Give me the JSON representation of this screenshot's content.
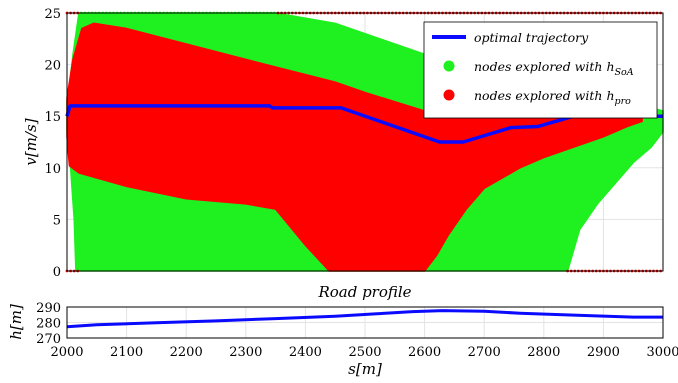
{
  "chart_data": [
    {
      "type": "area",
      "title": "",
      "xlabel": "",
      "ylabel": "v[m/s]",
      "xlim": [
        2000,
        3000
      ],
      "ylim": [
        0,
        25
      ],
      "yticks": [
        0,
        5,
        10,
        15,
        20,
        25
      ],
      "grid": true,
      "legend_position": "top-right",
      "colors": {
        "h_soa": "#1ff01f",
        "h_pro": "#ff0000",
        "trajectory": "#0a0aff"
      },
      "legend": [
        {
          "key": "trajectory",
          "label": "optimal trajectory",
          "kind": "line"
        },
        {
          "key": "h_soa",
          "label": "nodes explored with ",
          "sub": "SoA",
          "kind": "dot"
        },
        {
          "key": "h_pro",
          "label": "nodes explored with ",
          "sub": "pro",
          "kind": "dot"
        }
      ],
      "series": [
        {
          "key": "h_soa",
          "upper": [
            [
              2000,
              16.5
            ],
            [
              2003,
              17.5
            ],
            [
              2010,
              21
            ],
            [
              2020,
              25
            ],
            [
              2350,
              25
            ],
            [
              2450,
              24
            ],
            [
              2550,
              22
            ],
            [
              2650,
              20
            ],
            [
              2750,
              18
            ],
            [
              2850,
              17
            ],
            [
              2950,
              16.3
            ],
            [
              3000,
              15.5
            ]
          ],
          "lower": [
            [
              2000,
              13.5
            ],
            [
              2003,
              12
            ],
            [
              2006,
              10
            ],
            [
              2012,
              5
            ],
            [
              2015,
              0
            ],
            [
              2840,
              0
            ],
            [
              2860,
              4
            ],
            [
              2890,
              6.5
            ],
            [
              2920,
              8.5
            ],
            [
              2950,
              10.5
            ],
            [
              2980,
              12
            ],
            [
              3000,
              13.5
            ]
          ]
        },
        {
          "key": "h_pro",
          "upper": [
            [
              2000,
              16.8
            ],
            [
              2010,
              20.5
            ],
            [
              2025,
              23.5
            ],
            [
              2045,
              24
            ],
            [
              2100,
              23.5
            ],
            [
              2300,
              20.5
            ],
            [
              2450,
              18.3
            ],
            [
              2500,
              17.3
            ],
            [
              2600,
              15.5
            ],
            [
              2700,
              15.9
            ],
            [
              2800,
              15.9
            ],
            [
              2900,
              15.9
            ],
            [
              2950,
              15.9
            ],
            [
              2965,
              15.5
            ]
          ],
          "lower": [
            [
              2965,
              14.5
            ],
            [
              2940,
              14
            ],
            [
              2900,
              13
            ],
            [
              2850,
              12
            ],
            [
              2800,
              11
            ],
            [
              2760,
              10
            ],
            [
              2730,
              9
            ],
            [
              2700,
              8
            ],
            [
              2670,
              6
            ],
            [
              2640,
              3.5
            ],
            [
              2620,
              1.5
            ],
            [
              2600,
              0
            ],
            [
              2500,
              0
            ],
            [
              2440,
              0
            ],
            [
              2400,
              2.5
            ],
            [
              2350,
              6
            ],
            [
              2300,
              6.5
            ],
            [
              2200,
              7
            ],
            [
              2100,
              8.2
            ],
            [
              2020,
              9.5
            ],
            [
              2004,
              10.2
            ],
            [
              2000,
              13
            ]
          ]
        }
      ],
      "trajectory": {
        "x": [
          2000,
          2005,
          2340,
          2345,
          2460,
          2625,
          2665,
          2745,
          2790,
          2850,
          3000
        ],
        "y": [
          15,
          16,
          16,
          15.8,
          15.8,
          12.5,
          12.5,
          13.9,
          14,
          15,
          15
        ]
      }
    },
    {
      "type": "line",
      "title": "Road profile",
      "xlabel": "s[m]",
      "ylabel": "h[m]",
      "xlim": [
        2000,
        3000
      ],
      "ylim": [
        270,
        290
      ],
      "yticks": [
        270,
        280,
        290
      ],
      "xticks": [
        2000,
        2100,
        2200,
        2300,
        2400,
        2500,
        2600,
        2700,
        2800,
        2900,
        3000
      ],
      "grid": true,
      "series": [
        {
          "name": "",
          "color": "#0a0aff",
          "x": [
            2000,
            2050,
            2150,
            2250,
            2350,
            2450,
            2520,
            2580,
            2630,
            2700,
            2760,
            2850,
            2950,
            3000
          ],
          "y": [
            277.3,
            278.5,
            279.8,
            281.0,
            282.5,
            284.0,
            285.6,
            287.0,
            287.7,
            287.2,
            286.0,
            284.8,
            283.5,
            283.5
          ]
        }
      ]
    }
  ]
}
